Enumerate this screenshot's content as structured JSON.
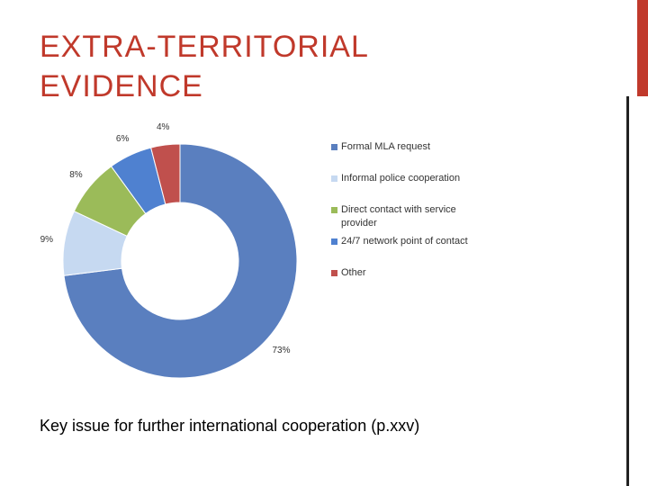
{
  "title": "EXTRA-TERRITORIAL EVIDENCE",
  "caption": "Key issue for further international cooperation (p.xxv)",
  "chart_data": {
    "type": "donut",
    "categories": [
      "Formal MLA request",
      "Informal police cooperation",
      "Direct contact with service provider",
      "24/7 network point of contact",
      "Other"
    ],
    "values": [
      73,
      9,
      8,
      6,
      4
    ],
    "value_labels": [
      "73%",
      "9%",
      "8%",
      "6%",
      "4%"
    ],
    "colors": [
      "#5a7fbf",
      "#c6d9f1",
      "#9bbb59",
      "#4f81d0",
      "#c0504d"
    ],
    "legend": "right"
  }
}
